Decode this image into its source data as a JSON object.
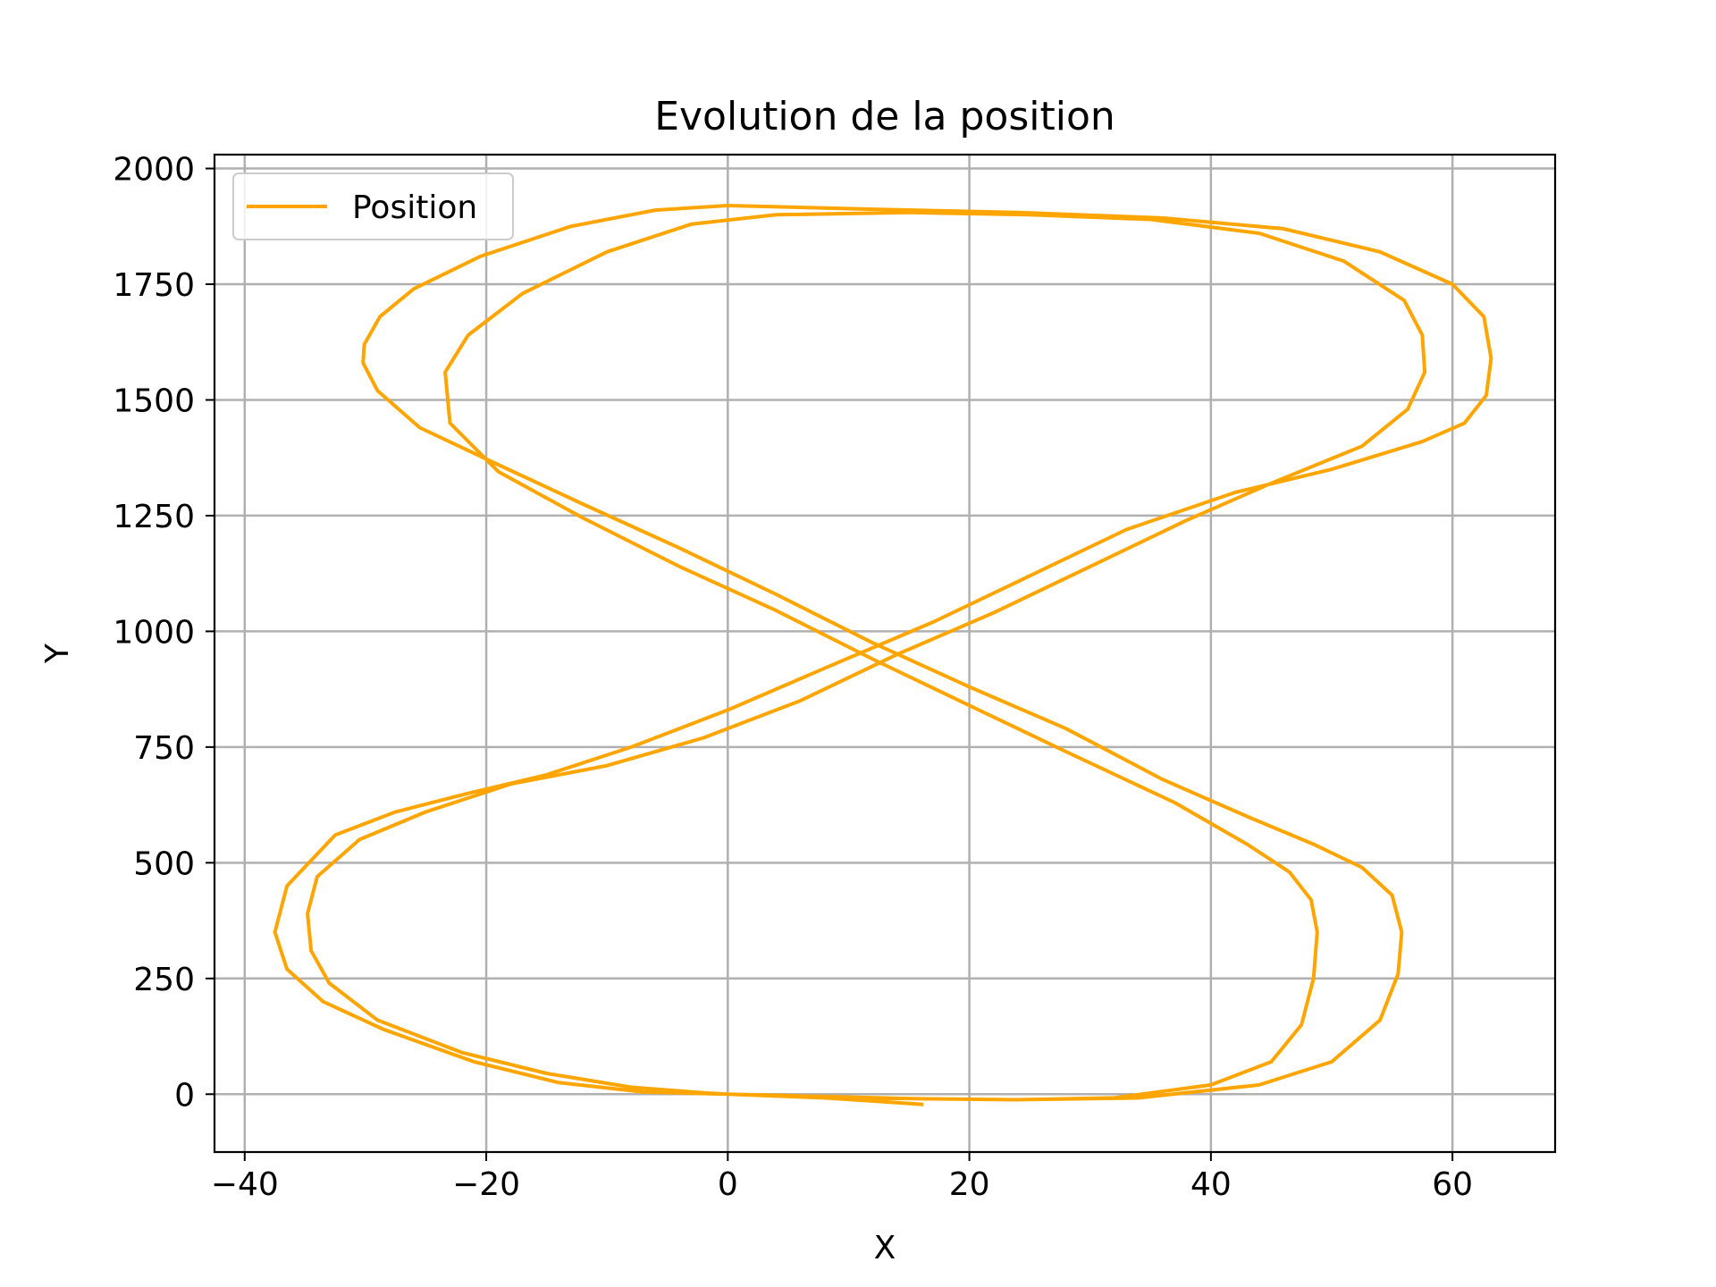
{
  "chart_data": {
    "type": "line",
    "title": "Evolution de la position",
    "xlabel": "X",
    "ylabel": "Y",
    "xlim": [
      -42.5,
      68.5
    ],
    "ylim": [
      -125,
      2030
    ],
    "grid": true,
    "legend_position": "top-left",
    "x_ticks": [
      -40,
      -20,
      0,
      20,
      40,
      60
    ],
    "x_tick_labels": [
      "−40",
      "−20",
      "0",
      "20",
      "40",
      "60"
    ],
    "y_ticks": [
      0,
      250,
      500,
      750,
      1000,
      1250,
      1500,
      1750,
      2000
    ],
    "y_tick_labels": [
      "0",
      "250",
      "500",
      "750",
      "1000",
      "1250",
      "1500",
      "1750",
      "2000"
    ],
    "series": [
      {
        "name": "Position",
        "color": "#ffa500",
        "points": [
          [
            0,
            0
          ],
          [
            8,
            -5
          ],
          [
            16,
            -10
          ],
          [
            24,
            -12
          ],
          [
            32,
            -8
          ],
          [
            40,
            20
          ],
          [
            45,
            70
          ],
          [
            47.5,
            150
          ],
          [
            48.5,
            250
          ],
          [
            48.8,
            350
          ],
          [
            48.3,
            420
          ],
          [
            46.5,
            480
          ],
          [
            43,
            540
          ],
          [
            37,
            630
          ],
          [
            28,
            740
          ],
          [
            20,
            840
          ],
          [
            12,
            940
          ],
          [
            4,
            1045
          ],
          [
            -4,
            1140
          ],
          [
            -12,
            1245
          ],
          [
            -19,
            1345
          ],
          [
            -23,
            1450
          ],
          [
            -23.4,
            1560
          ],
          [
            -21.5,
            1640
          ],
          [
            -17,
            1730
          ],
          [
            -10,
            1820
          ],
          [
            -3,
            1880
          ],
          [
            4,
            1900
          ],
          [
            15,
            1905
          ],
          [
            25,
            1900
          ],
          [
            35,
            1890
          ],
          [
            44,
            1860
          ],
          [
            51,
            1800
          ],
          [
            56,
            1715
          ],
          [
            57.5,
            1640
          ],
          [
            57.7,
            1560
          ],
          [
            56.3,
            1480
          ],
          [
            52.5,
            1400
          ],
          [
            45,
            1320
          ],
          [
            38,
            1240
          ],
          [
            30,
            1140
          ],
          [
            22,
            1040
          ],
          [
            14,
            950
          ],
          [
            6,
            850
          ],
          [
            -2,
            770
          ],
          [
            -10,
            710
          ],
          [
            -18,
            670
          ],
          [
            -25,
            610
          ],
          [
            -30.5,
            550
          ],
          [
            -34,
            470
          ],
          [
            -34.8,
            390
          ],
          [
            -34.5,
            310
          ],
          [
            -33,
            240
          ],
          [
            -29,
            160
          ],
          [
            -22,
            90
          ],
          [
            -15,
            45
          ],
          [
            -8,
            15
          ],
          [
            -2,
            3
          ],
          [
            0,
            0
          ],
          [
            8,
            -6
          ],
          [
            16,
            -10
          ],
          [
            24,
            -12
          ],
          [
            34,
            -8
          ],
          [
            44,
            20
          ],
          [
            50,
            70
          ],
          [
            54,
            160
          ],
          [
            55.5,
            260
          ],
          [
            55.8,
            350
          ],
          [
            55,
            430
          ],
          [
            52.5,
            490
          ],
          [
            48.5,
            540
          ],
          [
            43,
            600
          ],
          [
            36,
            680
          ],
          [
            28,
            790
          ],
          [
            20,
            880
          ],
          [
            12,
            975
          ],
          [
            4,
            1080
          ],
          [
            -4,
            1180
          ],
          [
            -12,
            1275
          ],
          [
            -19,
            1360
          ],
          [
            -25.5,
            1440
          ],
          [
            -29,
            1520
          ],
          [
            -30.2,
            1580
          ],
          [
            -30.1,
            1620
          ],
          [
            -28.8,
            1680
          ],
          [
            -26,
            1740
          ],
          [
            -20.5,
            1810
          ],
          [
            -13,
            1875
          ],
          [
            -6,
            1910
          ],
          [
            0,
            1920
          ],
          [
            12,
            1912
          ],
          [
            24,
            1905
          ],
          [
            36,
            1893
          ],
          [
            46,
            1870
          ],
          [
            54,
            1820
          ],
          [
            60,
            1750
          ],
          [
            62.6,
            1680
          ],
          [
            63.2,
            1590
          ],
          [
            62.8,
            1510
          ],
          [
            61,
            1450
          ],
          [
            57.5,
            1410
          ],
          [
            50,
            1350
          ],
          [
            42,
            1300
          ],
          [
            33,
            1220
          ],
          [
            25,
            1120
          ],
          [
            17,
            1020
          ],
          [
            8,
            920
          ],
          [
            0,
            830
          ],
          [
            -8,
            750
          ],
          [
            -15,
            690
          ],
          [
            -21.5,
            650
          ],
          [
            -27.5,
            610
          ],
          [
            -32.5,
            560
          ],
          [
            -36.5,
            450
          ],
          [
            -37.5,
            350
          ],
          [
            -36.5,
            270
          ],
          [
            -33.5,
            200
          ],
          [
            -28.5,
            140
          ],
          [
            -21,
            70
          ],
          [
            -14,
            25
          ],
          [
            -7,
            5
          ],
          [
            0,
            0
          ],
          [
            8,
            -8
          ],
          [
            16.2,
            -22
          ]
        ]
      }
    ]
  }
}
